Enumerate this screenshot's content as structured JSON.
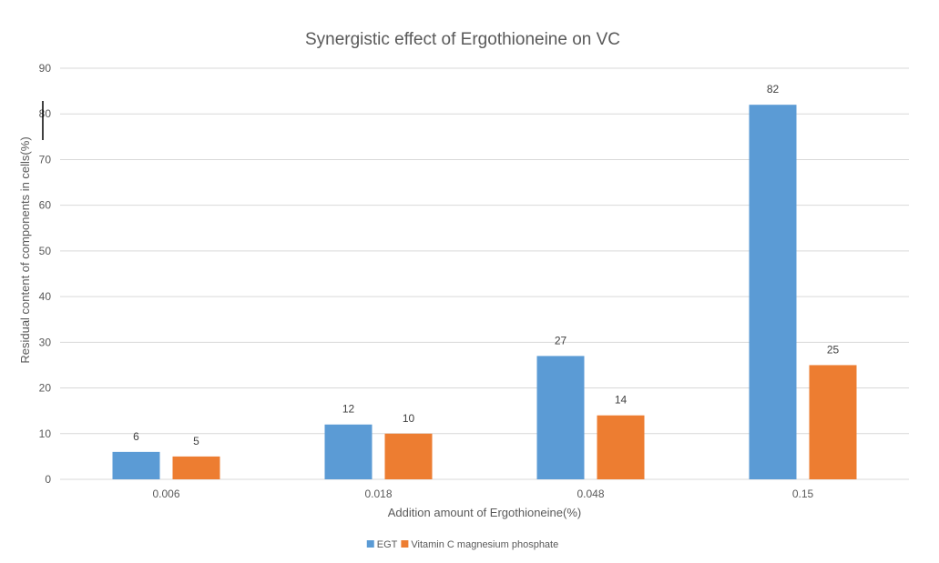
{
  "chart_data": {
    "type": "bar",
    "title": "Synergistic effect of Ergothioneine on VC",
    "xlabel": "Addition amount of Ergothioneine(%)",
    "ylabel": "Residual content of components in cells(%)",
    "categories": [
      "0.006",
      "0.018",
      "0.048",
      "0.15"
    ],
    "series": [
      {
        "name": "EGT",
        "color": "#5B9BD5",
        "values": [
          6,
          12,
          27,
          82
        ]
      },
      {
        "name": "Vitamin C magnesium phosphate",
        "color": "#ED7D31",
        "values": [
          5,
          10,
          14,
          25
        ]
      }
    ],
    "ylim": [
      0,
      90
    ],
    "yticks": [
      0,
      10,
      20,
      30,
      40,
      50,
      60,
      70,
      80,
      90
    ],
    "grid": true,
    "legend": "bottom"
  }
}
